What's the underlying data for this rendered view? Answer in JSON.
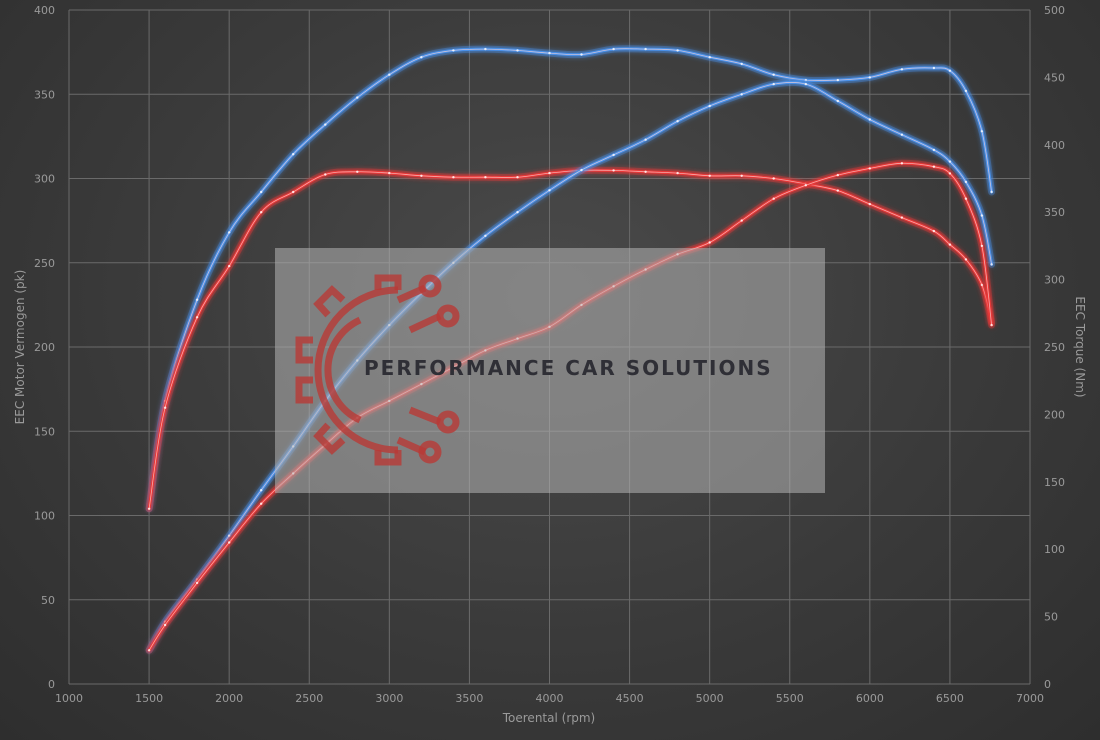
{
  "chart_data": {
    "type": "line",
    "xlabel": "Toerental (rpm)",
    "ylabel_left": "EEC Motor Vermogen (pk)",
    "ylabel_right": "EEC Torque (Nm)",
    "xlim": [
      1000,
      7000
    ],
    "ylim_left": [
      0,
      400
    ],
    "ylim_right": [
      0,
      500
    ],
    "x_ticks": [
      1000,
      1500,
      2000,
      2500,
      3000,
      3500,
      4000,
      4500,
      5000,
      5500,
      6000,
      6500,
      7000
    ],
    "y_left_ticks": [
      0,
      50,
      100,
      150,
      200,
      250,
      300,
      350,
      400
    ],
    "y_right_ticks": [
      0,
      50,
      100,
      150,
      200,
      250,
      300,
      350,
      400,
      450,
      500
    ],
    "grid": true,
    "series": [
      {
        "axis": "right",
        "color": "#4a90e8",
        "x": [
          1500,
          1600,
          1800,
          2000,
          2200,
          2400,
          2600,
          2800,
          3000,
          3200,
          3400,
          3600,
          3800,
          4000,
          4200,
          4400,
          4600,
          4800,
          5000,
          5200,
          5400,
          5600,
          5800,
          6000,
          6200,
          6400,
          6500,
          6600,
          6700,
          6760
        ],
        "values": [
          130,
          210,
          285,
          335,
          365,
          393,
          415,
          435,
          452,
          465,
          470,
          471,
          470,
          468,
          467,
          471,
          471,
          470,
          465,
          460,
          452,
          448,
          448,
          450,
          456,
          457,
          455,
          440,
          410,
          365
        ]
      },
      {
        "axis": "right",
        "color": "#e83838",
        "x": [
          1500,
          1600,
          1800,
          2000,
          2200,
          2400,
          2600,
          2800,
          3000,
          3200,
          3400,
          3600,
          3800,
          4000,
          4200,
          4400,
          4600,
          4800,
          5000,
          5200,
          5400,
          5600,
          5800,
          6000,
          6200,
          6400,
          6500,
          6600,
          6700,
          6760
        ],
        "values": [
          130,
          205,
          272,
          310,
          350,
          365,
          378,
          380,
          379,
          377,
          376,
          376,
          376,
          379,
          381,
          381,
          380,
          379,
          377,
          377,
          375,
          371,
          366,
          356,
          346,
          336,
          326,
          315,
          296,
          268
        ]
      },
      {
        "axis": "left",
        "color": "#4a90e8",
        "x": [
          1500,
          1600,
          1800,
          2000,
          2200,
          2400,
          2600,
          2800,
          3000,
          3200,
          3400,
          3600,
          3800,
          4000,
          4200,
          4400,
          4600,
          4800,
          5000,
          5200,
          5400,
          5600,
          5800,
          6000,
          6200,
          6400,
          6500,
          6600,
          6700,
          6760
        ],
        "values": [
          20,
          37,
          62,
          88,
          115,
          141,
          168,
          192,
          213,
          232,
          250,
          266,
          280,
          293,
          305,
          314,
          323,
          334,
          343,
          350,
          356,
          356,
          346,
          335,
          326,
          317,
          310,
          298,
          278,
          249
        ]
      },
      {
        "axis": "left",
        "color": "#e83838",
        "x": [
          1500,
          1600,
          1800,
          2000,
          2200,
          2400,
          2600,
          2800,
          3000,
          3200,
          3400,
          3600,
          3800,
          4000,
          4200,
          4400,
          4600,
          4800,
          5000,
          5200,
          5400,
          5600,
          5800,
          6000,
          6200,
          6400,
          6500,
          6600,
          6700,
          6760
        ],
        "values": [
          20,
          35,
          60,
          84,
          107,
          125,
          142,
          158,
          168,
          178,
          188,
          198,
          205,
          212,
          225,
          236,
          246,
          255,
          262,
          275,
          288,
          296,
          302,
          306,
          309,
          307,
          303,
          288,
          260,
          213
        ]
      }
    ]
  },
  "watermark": {
    "text": "PERFORMANCE CAR SOLUTIONS",
    "logo_icon": "gear-circuit-icon",
    "logo_color": "#b83a36"
  }
}
